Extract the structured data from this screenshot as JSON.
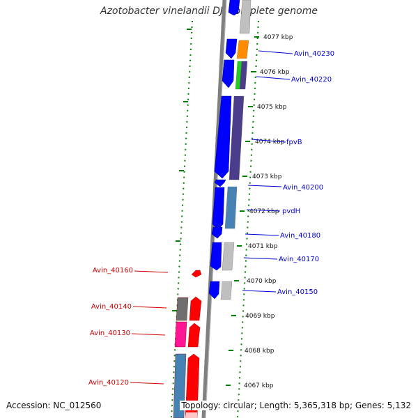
{
  "title": "Azotobacter vinelandii DJ, complete genome",
  "accession_label": "Accession: NC_012560",
  "topology_label": "Topology: circular; Length: 5,365,318 bp; Genes: 5,132",
  "colors": {
    "forward_strand": "#0000ff",
    "reverse_strand": "#ff0000",
    "label_blue": "#0000cc",
    "label_red": "#cc0000",
    "tick_green": "#008000",
    "backbone": "#808080"
  },
  "kbp_ticks": [
    "4077 kbp",
    "4076 kbp",
    "4075 kbp",
    "4074 kbp",
    "4073 kbp",
    "4072 kbp",
    "4071 kbp",
    "4070 kbp",
    "4069 kbp",
    "4068 kbp",
    "4067 kbp"
  ],
  "gene_labels_right": [
    "Avin_40230",
    "Avin_40220",
    "fpvB",
    "Avin_40200",
    "pvdH",
    "Avin_40180",
    "Avin_40170",
    "Avin_40150"
  ],
  "gene_labels_left": [
    "Avin_40160",
    "Avin_40140",
    "Avin_40130",
    "Avin_40120"
  ]
}
